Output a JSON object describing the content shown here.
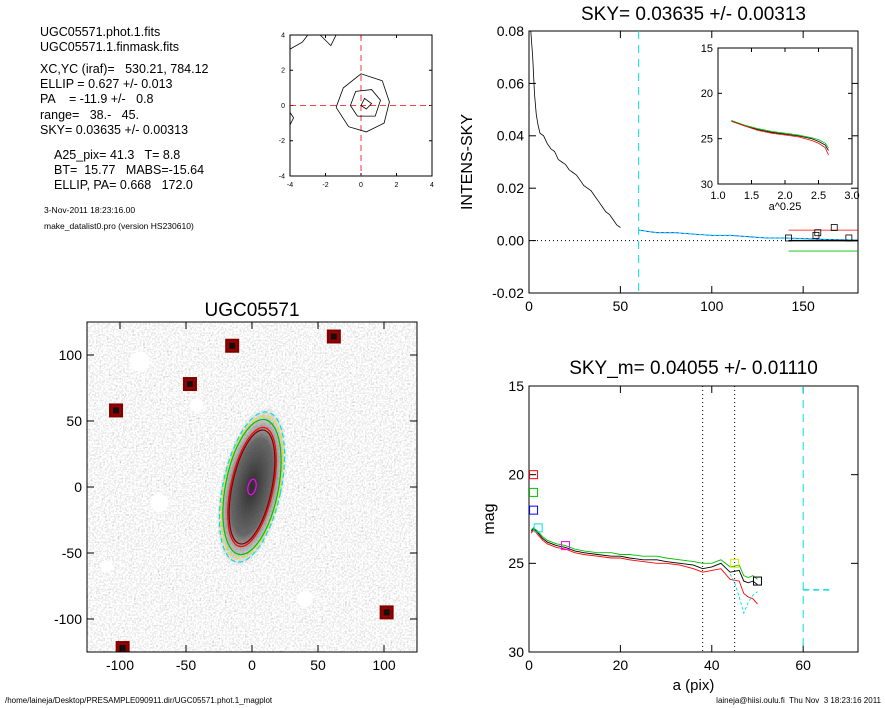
{
  "info": {
    "file1": "UGC05571.phot.1.fits",
    "file2": "UGC05571.1.finmask.fits",
    "xcyc": "XC,YC (iraf)=   530.21, 784.12",
    "ellip": "ELLIP = 0.627 +/- 0.013",
    "pa": "PA    = -11.9 +/-   0.8",
    "range": "range=   38.-   45.",
    "sky": "SKY= 0.03635 +/- 0.00313",
    "a25": "A25_pix= 41.3   T= 8.8",
    "bt": "BT=  15.77   MABS=-15.64",
    "ellip_pa": "ELLIP, PA= 0.668   172.0",
    "date": "3-Nov-2011 18:23:16.00",
    "program": "make_datalist0.pro (version HS230610)"
  },
  "footer": {
    "left": "/home/laineja/Desktop/PRESAMPLE090911.dir/UGC05571.phot.1_magplot",
    "right": "laineja@hiisi.oulu.fi  Thu Nov  3 18:23:16 2011"
  },
  "colors": {
    "red": "#ff0000",
    "green": "#00c000",
    "blue": "#0000ff",
    "cyan": "#00e0e0",
    "magenta": "#ff00ff",
    "yellow": "#e6e600",
    "brown": "#8b1a1a",
    "maroon": "#800000"
  },
  "chart_data": [
    {
      "type": "contour",
      "title": "",
      "xlim": [
        -4,
        4
      ],
      "ylim": [
        -4,
        4
      ],
      "xticks": [
        -4,
        -2,
        0,
        2,
        4
      ],
      "yticks": [
        -4,
        -2,
        0,
        2,
        4
      ],
      "crosshair": [
        0,
        0
      ],
      "contours": [
        [
          [
            -1.4,
            -0.1
          ],
          [
            -1.0,
            1.0
          ],
          [
            0.0,
            1.8
          ],
          [
            1.2,
            1.4
          ],
          [
            1.6,
            0.2
          ],
          [
            1.3,
            -1.0
          ],
          [
            0.3,
            -1.5
          ],
          [
            -0.7,
            -1.2
          ],
          [
            -1.4,
            -0.1
          ]
        ],
        [
          [
            -0.6,
            0.0
          ],
          [
            -0.3,
            0.8
          ],
          [
            0.6,
            0.9
          ],
          [
            1.1,
            0.3
          ],
          [
            0.8,
            -0.6
          ],
          [
            -0.2,
            -0.6
          ],
          [
            -0.6,
            0.0
          ]
        ],
        [
          [
            0.0,
            0.0
          ],
          [
            0.2,
            0.4
          ],
          [
            0.6,
            0.1
          ],
          [
            0.3,
            -0.2
          ],
          [
            0.0,
            0.0
          ]
        ]
      ],
      "corner_contours": [
        [
          [
            -4.0,
            3.2
          ],
          [
            -3.3,
            3.6
          ],
          [
            -3.0,
            4.0
          ]
        ],
        [
          [
            -2.3,
            4.0
          ],
          [
            -1.7,
            3.4
          ],
          [
            -1.4,
            4.0
          ]
        ]
      ],
      "side_contour": [
        [
          -4.0,
          -0.4
        ],
        [
          -3.8,
          -0.7
        ],
        [
          -4.0,
          -1.1
        ]
      ]
    },
    {
      "type": "line",
      "title": "SKY= 0.03635 +/- 0.00313",
      "xlabel": "",
      "ylabel": "INTENS-SKY",
      "xlim": [
        0,
        180
      ],
      "ylim": [
        -0.02,
        0.08
      ],
      "xticks": [
        0,
        50,
        100,
        150
      ],
      "yticks": [
        -0.02,
        0.0,
        0.02,
        0.04,
        0.06,
        0.08
      ],
      "ytick_labels": [
        "-0.02",
        "0.00",
        "0.02",
        "0.04",
        "0.06",
        "0.08"
      ],
      "sky_range_x": 60,
      "profile": [
        [
          1,
          0.08
        ],
        [
          2,
          0.07
        ],
        [
          3,
          0.056
        ],
        [
          4,
          0.048
        ],
        [
          5,
          0.044
        ],
        [
          6,
          0.041
        ],
        [
          8,
          0.04
        ],
        [
          10,
          0.037
        ],
        [
          12,
          0.035
        ],
        [
          14,
          0.034
        ],
        [
          16,
          0.031
        ],
        [
          18,
          0.03
        ],
        [
          20,
          0.029
        ],
        [
          22,
          0.027
        ],
        [
          24,
          0.026
        ],
        [
          26,
          0.025
        ],
        [
          28,
          0.023
        ],
        [
          30,
          0.021
        ],
        [
          32,
          0.02
        ],
        [
          34,
          0.019
        ],
        [
          36,
          0.017
        ],
        [
          38,
          0.015
        ],
        [
          40,
          0.013
        ],
        [
          42,
          0.011
        ],
        [
          44,
          0.01
        ],
        [
          46,
          0.008
        ],
        [
          48,
          0.006
        ],
        [
          50,
          0.005
        ]
      ],
      "sky_profile": [
        [
          60,
          0.004
        ],
        [
          70,
          0.003
        ],
        [
          80,
          0.003
        ],
        [
          90,
          0.0025
        ],
        [
          100,
          0.002
        ],
        [
          110,
          0.002
        ],
        [
          120,
          0.0015
        ],
        [
          130,
          0.001
        ],
        [
          140,
          0.001
        ],
        [
          150,
          0.0008
        ],
        [
          160,
          0.0005
        ],
        [
          170,
          0.0003
        ],
        [
          180,
          0.0002
        ]
      ],
      "squares": [
        [
          142,
          0.001
        ],
        [
          157,
          0.002
        ],
        [
          158,
          0.003
        ],
        [
          167,
          0.005
        ],
        [
          175,
          0.001
        ]
      ],
      "red_line": {
        "x": [
          142,
          180
        ],
        "y": 0.004
      },
      "green_line": {
        "x": [
          142,
          180
        ],
        "y": -0.004
      },
      "inset": {
        "type": "line",
        "xlabel": "a^0.25",
        "xlim": [
          1.0,
          3.0
        ],
        "ylim": [
          30,
          15
        ],
        "xticks": [
          1.0,
          1.5,
          2.0,
          2.5,
          3.0
        ],
        "xtick_labels": [
          "1.0",
          "1.5",
          "2.0",
          "2.5",
          "3.0"
        ],
        "yticks": [
          15,
          20,
          25,
          30
        ],
        "series": [
          {
            "color": "black",
            "x": [
              1.2,
              1.4,
              1.6,
              1.8,
              2.0,
              2.2,
              2.4,
              2.5,
              2.6,
              2.65
            ],
            "y": [
              23.0,
              23.6,
              24.0,
              24.3,
              24.5,
              24.7,
              25.0,
              25.3,
              25.7,
              26.3
            ]
          },
          {
            "color": "green",
            "x": [
              1.2,
              1.4,
              1.6,
              1.8,
              2.0,
              2.2,
              2.4,
              2.5,
              2.6,
              2.65
            ],
            "y": [
              23.0,
              23.5,
              23.9,
              24.2,
              24.4,
              24.6,
              24.9,
              25.1,
              25.5,
              26.0
            ]
          },
          {
            "color": "red",
            "x": [
              1.2,
              1.4,
              1.6,
              1.8,
              2.0,
              2.2,
              2.4,
              2.5,
              2.6,
              2.65
            ],
            "y": [
              23.1,
              23.6,
              24.1,
              24.4,
              24.6,
              24.8,
              25.2,
              25.5,
              26.0,
              26.8
            ]
          }
        ]
      }
    },
    {
      "type": "image",
      "title": "UGC05571",
      "xlim": [
        -125,
        125
      ],
      "ylim": [
        -125,
        125
      ],
      "xticks": [
        -100,
        -50,
        0,
        50,
        100
      ],
      "yticks": [
        -100,
        -50,
        0,
        50,
        100
      ],
      "masked_stars": [
        [
          -15,
          107
        ],
        [
          -47,
          78
        ],
        [
          -103,
          58
        ],
        [
          62,
          114
        ],
        [
          102,
          -95
        ],
        [
          -98,
          -122
        ]
      ],
      "ellipses": [
        {
          "color": "yellow",
          "a": 55,
          "b": 21,
          "pa": -12
        },
        {
          "color": "cyan",
          "a": 58,
          "b": 22,
          "pa": -12
        },
        {
          "color": "green",
          "a": 52,
          "b": 20,
          "pa": -11
        },
        {
          "color": "red",
          "a": 46,
          "b": 16,
          "pa": -12
        },
        {
          "color": "maroon",
          "a": 44,
          "b": 15,
          "pa": -12
        },
        {
          "color": "magenta",
          "a": 6,
          "b": 3,
          "pa": -12
        }
      ]
    },
    {
      "type": "line",
      "title": "SKY_m=  0.04055 +/- 0.01110",
      "xlabel": "a (pix)",
      "ylabel": "mag",
      "xlim": [
        0,
        72
      ],
      "ylim": [
        30,
        15
      ],
      "xticks": [
        0,
        20,
        40,
        60
      ],
      "yticks": [
        15,
        20,
        25,
        30
      ],
      "vlines_dotted": [
        38,
        45
      ],
      "vline_dashed": 60,
      "sky_dash": {
        "x": [
          60,
          66
        ],
        "y": 26.5
      },
      "series": [
        {
          "color": "black",
          "x": [
            0.5,
            1,
            2,
            3,
            4,
            6,
            8,
            10,
            12,
            15,
            18,
            20,
            22,
            25,
            28,
            30,
            33,
            36,
            38,
            40,
            42,
            44,
            46,
            47,
            48,
            49,
            50
          ],
          "y": [
            23.2,
            23.0,
            23.3,
            23.6,
            23.8,
            24.0,
            24.1,
            24.3,
            24.4,
            24.5,
            24.6,
            24.6,
            24.7,
            24.8,
            24.8,
            24.9,
            25.0,
            25.1,
            25.3,
            25.2,
            25.0,
            25.5,
            25.4,
            26.0,
            26.1,
            26.0,
            26.2
          ]
        },
        {
          "color": "green",
          "x": [
            0.5,
            1,
            2,
            3,
            4,
            6,
            8,
            10,
            12,
            15,
            18,
            20,
            22,
            25,
            28,
            30,
            33,
            36,
            38,
            40,
            42,
            44,
            46,
            47,
            48,
            49,
            50
          ],
          "y": [
            23.1,
            23.0,
            23.2,
            23.5,
            23.7,
            23.9,
            24.0,
            24.2,
            24.3,
            24.4,
            24.4,
            24.5,
            24.5,
            24.6,
            24.6,
            24.7,
            24.8,
            24.9,
            25.0,
            25.0,
            24.8,
            25.2,
            25.1,
            25.7,
            25.8,
            25.7,
            25.9
          ]
        },
        {
          "color": "red",
          "x": [
            0.5,
            1,
            2,
            3,
            4,
            6,
            8,
            10,
            12,
            15,
            18,
            20,
            22,
            25,
            28,
            30,
            33,
            36,
            38,
            40,
            42,
            44,
            46,
            47,
            48,
            49,
            50
          ],
          "y": [
            23.3,
            23.1,
            23.4,
            23.7,
            23.9,
            24.1,
            24.2,
            24.4,
            24.5,
            24.6,
            24.7,
            24.7,
            24.8,
            24.9,
            25.0,
            25.0,
            25.1,
            25.3,
            25.5,
            25.4,
            25.3,
            25.9,
            26.0,
            26.7,
            26.9,
            27.0,
            27.3
          ]
        },
        {
          "color": "cyan",
          "x": [
            44,
            45,
            46,
            47,
            48,
            49,
            50
          ],
          "y": [
            25.6,
            26.1,
            26.9,
            27.8,
            27.2,
            26.8,
            26.6
          ]
        }
      ],
      "squares": [
        {
          "color": "red",
          "x": 1,
          "y": 20.0
        },
        {
          "color": "green",
          "x": 1,
          "y": 21.0
        },
        {
          "color": "blue",
          "x": 1,
          "y": 22.0
        },
        {
          "color": "cyan",
          "x": 2,
          "y": 23.0
        },
        {
          "color": "magenta",
          "x": 8,
          "y": 24.0
        },
        {
          "color": "yellow",
          "x": 45,
          "y": 25.0
        },
        {
          "color": "black",
          "x": 50,
          "y": 26.0
        }
      ]
    }
  ]
}
